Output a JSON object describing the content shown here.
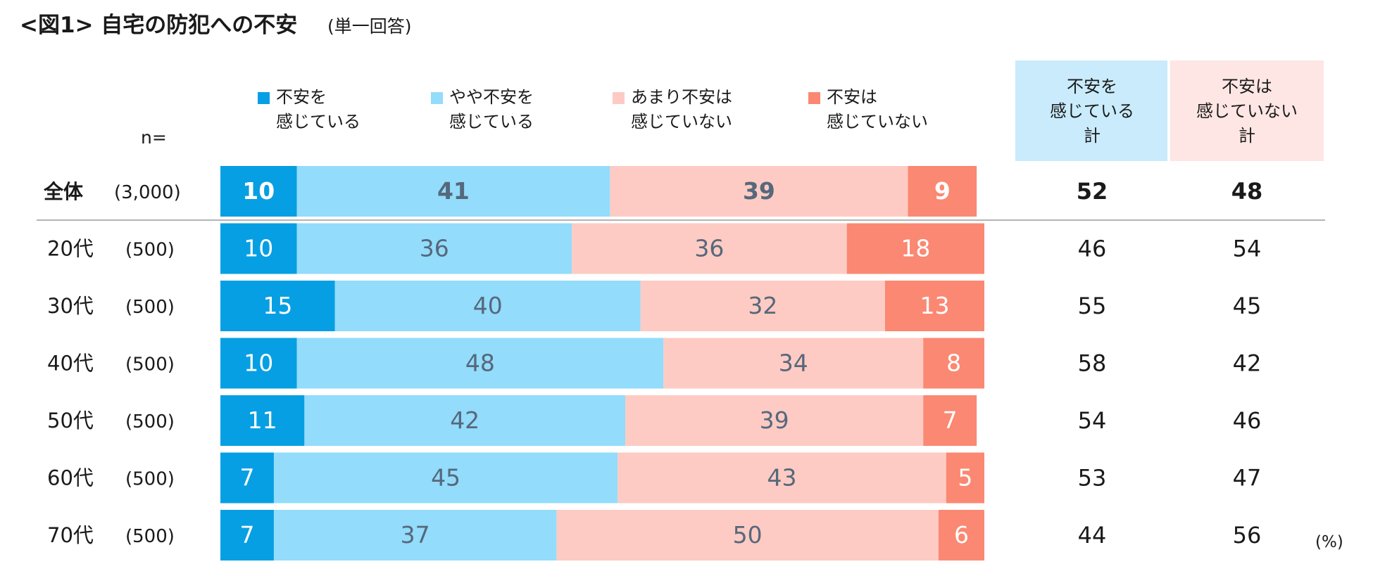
{
  "title": {
    "main": "<図1> 自宅の防犯への不安",
    "note": "(単一回答)"
  },
  "n_label": "n=",
  "unit_label": "(%)",
  "legend": [
    {
      "line1": "不安を",
      "line2": "感じている"
    },
    {
      "line1": "やや不安を",
      "line2": "感じている"
    },
    {
      "line1": "あまり不安は",
      "line2": "感じていない"
    },
    {
      "line1": "不安は",
      "line2": "感じていない"
    }
  ],
  "total_headers": [
    {
      "lines": [
        "不安を",
        "感じている",
        "計"
      ]
    },
    {
      "lines": [
        "不安は",
        "感じていない",
        "計"
      ]
    }
  ],
  "colors": {
    "series": [
      "#079fe3",
      "#93dcfb",
      "#fdcbc3",
      "#fb8872"
    ],
    "header_bg": [
      "#c9ebfb",
      "#fde6e3"
    ],
    "label_dark": "#56687c",
    "label_light": "#ffffff",
    "divider": "#9a9a9a"
  },
  "chart_data": {
    "type": "bar",
    "orientation": "horizontal",
    "stacked": true,
    "title": "<図1> 自宅の防犯への不安",
    "xlim": [
      0,
      100
    ],
    "unit": "%",
    "categories": [
      "全体",
      "20代",
      "30代",
      "40代",
      "50代",
      "60代",
      "70代"
    ],
    "n": [
      "(3,000)",
      "(500)",
      "(500)",
      "(500)",
      "(500)",
      "(500)",
      "(500)"
    ],
    "series": [
      {
        "name": "不安を感じている",
        "values": [
          10,
          10,
          15,
          10,
          11,
          7,
          7
        ]
      },
      {
        "name": "やや不安を感じている",
        "values": [
          41,
          36,
          40,
          48,
          42,
          45,
          37
        ]
      },
      {
        "name": "あまり不安は感じていない",
        "values": [
          39,
          36,
          32,
          34,
          39,
          43,
          50
        ]
      },
      {
        "name": "不安は感じていない",
        "values": [
          9,
          18,
          13,
          8,
          7,
          5,
          6
        ]
      }
    ],
    "totals": [
      {
        "name": "不安を感じている計",
        "values": [
          52,
          46,
          55,
          58,
          54,
          53,
          44
        ]
      },
      {
        "name": "不安は感じていない計",
        "values": [
          48,
          54,
          45,
          42,
          46,
          47,
          56
        ]
      }
    ]
  }
}
